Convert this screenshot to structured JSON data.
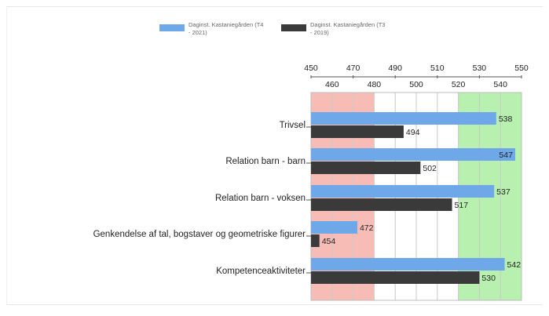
{
  "chart_data": {
    "type": "bar",
    "orientation": "horizontal",
    "title": "",
    "xlabel": "",
    "ylabel": "",
    "categories": [
      "Trivsel",
      "Relation barn - barn",
      "Relation barn - voksen",
      "Genkendelse af tal, bogstaver og geometriske figurer",
      "Kompetenceaktiviteter"
    ],
    "series": [
      {
        "name": "Daginst. Kastaniegården (T4 - 2021)",
        "values": [
          538,
          547,
          537,
          472,
          542
        ],
        "color": "#6fa8e8"
      },
      {
        "name": "Daginst. Kastaniegården (T3 - 2019)",
        "values": [
          494,
          502,
          517,
          454,
          530
        ],
        "color": "#3a3a3a"
      }
    ],
    "xlim": [
      450,
      550
    ],
    "ticks_upper": [
      "450",
      "470",
      "490",
      "510",
      "530",
      "550"
    ],
    "ticks_lower": [
      "460",
      "480",
      "500",
      "520",
      "540"
    ],
    "bands": [
      {
        "from": 450,
        "to": 480,
        "color": "#f8bcb6"
      },
      {
        "from": 520,
        "to": 550,
        "color": "#b8f0b0"
      }
    ],
    "grid": true,
    "legend_position": "top"
  }
}
